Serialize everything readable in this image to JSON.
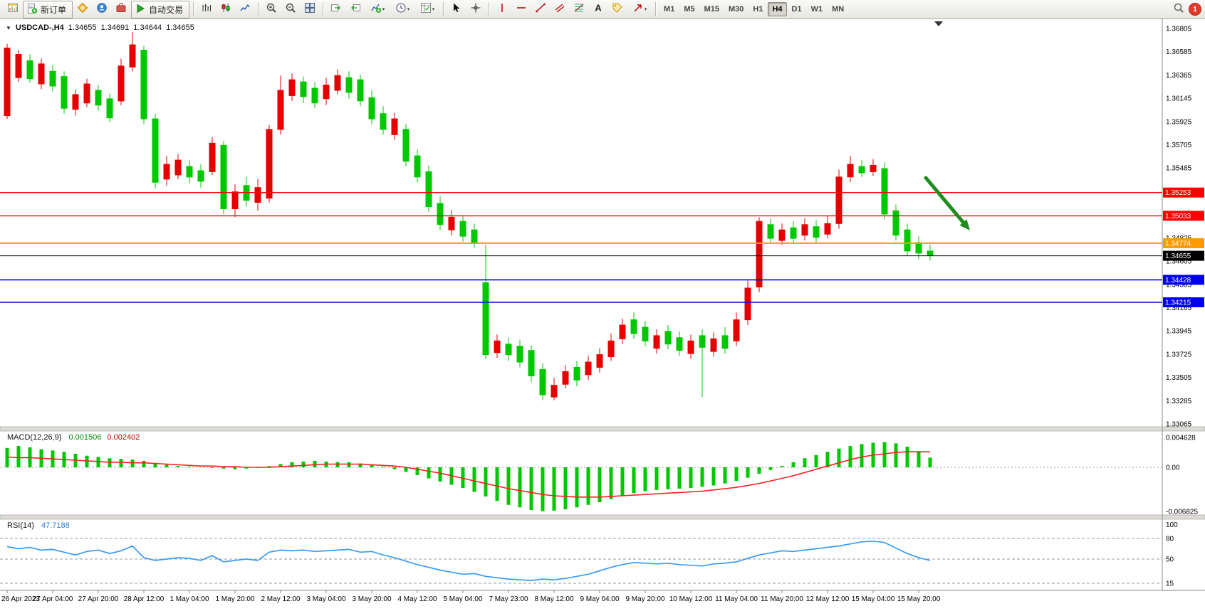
{
  "toolbar": {
    "items": [
      {
        "type": "icon",
        "name": "new-chart-icon"
      },
      {
        "type": "button",
        "name": "new-order-button",
        "icon": "order-ticket-icon",
        "label": "新订单"
      },
      {
        "type": "icon",
        "name": "metaquotes-icon"
      },
      {
        "type": "icon",
        "name": "community-icon"
      },
      {
        "type": "icon",
        "name": "market-icon"
      },
      {
        "type": "button",
        "name": "autotrading-button",
        "icon": "play-icon",
        "label": "自动交易"
      },
      {
        "type": "sep"
      },
      {
        "type": "icon",
        "name": "bar-chart-icon"
      },
      {
        "type": "icon",
        "name": "candlestick-chart-icon"
      },
      {
        "type": "icon",
        "name": "line-chart-icon"
      },
      {
        "type": "sep"
      },
      {
        "type": "icon",
        "name": "zoom-in-icon"
      },
      {
        "type": "icon",
        "name": "zoom-out-icon"
      },
      {
        "type": "icon",
        "name": "tile-windows-icon"
      },
      {
        "type": "sep"
      },
      {
        "type": "icon",
        "name": "auto-scroll-icon"
      },
      {
        "type": "icon",
        "name": "chart-shift-icon"
      },
      {
        "type": "dropdown",
        "name": "indicators-dropdown",
        "icon": "indicators-icon"
      },
      {
        "type": "dropdown",
        "name": "periods-dropdown",
        "icon": "clock-icon"
      },
      {
        "type": "dropdown",
        "name": "templates-dropdown",
        "icon": "template-icon"
      },
      {
        "type": "sep"
      },
      {
        "type": "icon",
        "name": "cursor-icon"
      },
      {
        "type": "icon",
        "name": "crosshair-icon"
      },
      {
        "type": "sep"
      },
      {
        "type": "icon",
        "name": "vertical-line-icon"
      },
      {
        "type": "icon",
        "name": "horizontal-line-icon"
      },
      {
        "type": "icon",
        "name": "trendline-icon"
      },
      {
        "type": "icon",
        "name": "channel-icon"
      },
      {
        "type": "icon",
        "name": "fibonacci-icon"
      },
      {
        "type": "icon",
        "name": "text-icon"
      },
      {
        "type": "icon",
        "name": "label-icon"
      },
      {
        "type": "dropdown",
        "name": "arrows-dropdown",
        "icon": "arrow-tool-icon"
      },
      {
        "type": "sep"
      },
      {
        "type": "timeframes"
      },
      {
        "type": "spacer"
      },
      {
        "type": "icon",
        "name": "search-icon"
      },
      {
        "type": "badge",
        "name": "notification-badge"
      }
    ],
    "timeframes": [
      "M1",
      "M5",
      "M15",
      "M30",
      "H1",
      "H4",
      "D1",
      "W1",
      "MN"
    ],
    "active_timeframe": "H4",
    "notification_count": "1"
  },
  "chart": {
    "title": {
      "symbol": "USDCAD-,H4",
      "open": "1.34655",
      "high": "1.34691",
      "low": "1.34644",
      "close": "1.34655"
    },
    "colors": {
      "up": "#E60000",
      "down": "#00C800"
    },
    "price_axis": {
      "max": 1.36805,
      "min": 1.33065,
      "ticks": [
        "1.36805",
        "1.36585",
        "1.36365",
        "1.36145",
        "1.35925",
        "1.35705",
        "1.35485",
        "1.35265",
        "1.35045",
        "1.34825",
        "1.34605",
        "1.34385",
        "1.34165",
        "1.33945",
        "1.33725",
        "1.33505",
        "1.33285",
        "1.33065"
      ]
    },
    "hlines": [
      {
        "price": 1.35253,
        "label": "1.35253",
        "color": "#FF0000",
        "width": 1.4
      },
      {
        "price": 1.35033,
        "label": "1.35033",
        "color": "#FF0000",
        "width": 1.4
      },
      {
        "price": 1.34774,
        "label": "1.34774",
        "color": "#FF9900",
        "width": 2
      },
      {
        "price": 1.34655,
        "label": "1.34655",
        "color": "#000000",
        "width": 1
      },
      {
        "price": 1.34428,
        "label": "1.34428",
        "color": "#0000EE",
        "width": 1.6
      },
      {
        "price": 1.34215,
        "label": "1.34215",
        "color": "#0000EE",
        "width": 1.6
      }
    ],
    "time_axis": [
      "26 Apr 2023",
      "27 Apr 04:00",
      "27 Apr 20:00",
      "28 Apr 12:00",
      "1 May 04:00",
      "1 May 20:00",
      "2 May 12:00",
      "3 May 04:00",
      "3 May 20:00",
      "4 May 12:00",
      "5 May 04:00",
      "7 May 23:00",
      "8 May 12:00",
      "9 May 04:00",
      "9 May 20:00",
      "10 May 12:00",
      "11 May 04:00",
      "11 May 20:00",
      "12 May 12:00",
      "15 May 04:00",
      "15 May 20:00"
    ],
    "annotation_arrow": {
      "color": "#1E8C1E"
    },
    "candles": [
      [
        1.3662,
        1.3598,
        1.3666,
        1.3595,
        "r"
      ],
      [
        1.3656,
        1.3634,
        1.366,
        1.363,
        "r"
      ],
      [
        1.365,
        1.3633,
        1.3656,
        1.3629,
        "g"
      ],
      [
        1.3647,
        1.3628,
        1.3652,
        1.3623,
        "r"
      ],
      [
        1.364,
        1.3626,
        1.3646,
        1.3621,
        "g"
      ],
      [
        1.3635,
        1.3605,
        1.364,
        1.36,
        "g"
      ],
      [
        1.3618,
        1.3604,
        1.3623,
        1.3598,
        "r"
      ],
      [
        1.3628,
        1.361,
        1.3633,
        1.3606,
        "r"
      ],
      [
        1.3622,
        1.3608,
        1.3627,
        1.3603,
        "g"
      ],
      [
        1.3614,
        1.3596,
        1.3619,
        1.3592,
        "g"
      ],
      [
        1.3645,
        1.3612,
        1.3652,
        1.3608,
        "r"
      ],
      [
        1.3665,
        1.3644,
        1.3677,
        1.364,
        "r"
      ],
      [
        1.366,
        1.3595,
        1.3664,
        1.359,
        "g"
      ],
      [
        1.3595,
        1.3535,
        1.36,
        1.3529,
        "g"
      ],
      [
        1.3552,
        1.3538,
        1.356,
        1.3532,
        "r"
      ],
      [
        1.3556,
        1.3542,
        1.3562,
        1.3538,
        "r"
      ],
      [
        1.355,
        1.354,
        1.3556,
        1.3534,
        "g"
      ],
      [
        1.3546,
        1.3536,
        1.3552,
        1.353,
        "g"
      ],
      [
        1.3572,
        1.3545,
        1.3578,
        1.3542,
        "r"
      ],
      [
        1.357,
        1.351,
        1.3574,
        1.3505,
        "g"
      ],
      [
        1.3526,
        1.351,
        1.3533,
        1.3502,
        "r"
      ],
      [
        1.3532,
        1.3518,
        1.354,
        1.3512,
        "g"
      ],
      [
        1.353,
        1.3516,
        1.3538,
        1.3508,
        "r"
      ],
      [
        1.3585,
        1.352,
        1.3589,
        1.3516,
        "r"
      ],
      [
        1.3622,
        1.3585,
        1.3636,
        1.358,
        "r"
      ],
      [
        1.3632,
        1.3617,
        1.3638,
        1.3612,
        "r"
      ],
      [
        1.363,
        1.3616,
        1.3635,
        1.361,
        "g"
      ],
      [
        1.3624,
        1.361,
        1.363,
        1.3605,
        "g"
      ],
      [
        1.3627,
        1.3614,
        1.3634,
        1.3608,
        "r"
      ],
      [
        1.3636,
        1.3622,
        1.3642,
        1.3618,
        "r"
      ],
      [
        1.3634,
        1.362,
        1.364,
        1.3614,
        "g"
      ],
      [
        1.3632,
        1.3612,
        1.3637,
        1.3607,
        "g"
      ],
      [
        1.3615,
        1.3595,
        1.3622,
        1.359,
        "g"
      ],
      [
        1.36,
        1.3585,
        1.3607,
        1.358,
        "g"
      ],
      [
        1.3595,
        1.358,
        1.3601,
        1.3575,
        "r"
      ],
      [
        1.3585,
        1.3555,
        1.359,
        1.355,
        "g"
      ],
      [
        1.356,
        1.354,
        1.3566,
        1.3535,
        "g"
      ],
      [
        1.3545,
        1.3512,
        1.3551,
        1.3507,
        "g"
      ],
      [
        1.3515,
        1.3495,
        1.3522,
        1.349,
        "g"
      ],
      [
        1.3502,
        1.349,
        1.3509,
        1.3485,
        "r"
      ],
      [
        1.3498,
        1.3484,
        1.3504,
        1.3479,
        "g"
      ],
      [
        1.349,
        1.3478,
        1.3496,
        1.3473,
        "g"
      ],
      [
        1.344,
        1.3372,
        1.3476,
        1.3368,
        "g"
      ],
      [
        1.3385,
        1.3374,
        1.3391,
        1.3369,
        "r"
      ],
      [
        1.3382,
        1.3372,
        1.3388,
        1.3366,
        "g"
      ],
      [
        1.338,
        1.3365,
        1.3386,
        1.336,
        "g"
      ],
      [
        1.3376,
        1.3352,
        1.3381,
        1.3346,
        "g"
      ],
      [
        1.3358,
        1.3334,
        1.3364,
        1.3329,
        "g"
      ],
      [
        1.3343,
        1.3332,
        1.335,
        1.3329,
        "r"
      ],
      [
        1.3356,
        1.3344,
        1.3362,
        1.334,
        "r"
      ],
      [
        1.336,
        1.3348,
        1.3366,
        1.3342,
        "g"
      ],
      [
        1.3365,
        1.3353,
        1.3371,
        1.3348,
        "r"
      ],
      [
        1.3372,
        1.336,
        1.3378,
        1.3355,
        "r"
      ],
      [
        1.3385,
        1.337,
        1.3392,
        1.3366,
        "r"
      ],
      [
        1.34,
        1.3387,
        1.3406,
        1.3382,
        "r"
      ],
      [
        1.3405,
        1.3392,
        1.3412,
        1.3387,
        "g"
      ],
      [
        1.3398,
        1.3385,
        1.3404,
        1.338,
        "g"
      ],
      [
        1.339,
        1.3378,
        1.3396,
        1.3373,
        "r"
      ],
      [
        1.3394,
        1.3382,
        1.34,
        1.3377,
        "g"
      ],
      [
        1.3388,
        1.3376,
        1.3394,
        1.3371,
        "g"
      ],
      [
        1.3385,
        1.3373,
        1.3391,
        1.3368,
        "r"
      ],
      [
        1.339,
        1.3379,
        1.3396,
        1.3332,
        "g"
      ],
      [
        1.3387,
        1.3375,
        1.3393,
        1.337,
        "r"
      ],
      [
        1.339,
        1.3378,
        1.3398,
        1.3373,
        "g"
      ],
      [
        1.3405,
        1.3385,
        1.3412,
        1.338,
        "r"
      ],
      [
        1.3435,
        1.3405,
        1.3442,
        1.34,
        "r"
      ],
      [
        1.3498,
        1.3436,
        1.3502,
        1.3431,
        "r"
      ],
      [
        1.3495,
        1.3482,
        1.3501,
        1.3478,
        "g"
      ],
      [
        1.349,
        1.348,
        1.3496,
        1.3476,
        "r"
      ],
      [
        1.3492,
        1.3482,
        1.3498,
        1.3477,
        "g"
      ],
      [
        1.3495,
        1.3485,
        1.3501,
        1.348,
        "r"
      ],
      [
        1.3493,
        1.3483,
        1.3499,
        1.3478,
        "g"
      ],
      [
        1.3496,
        1.3486,
        1.3503,
        1.3482,
        "r"
      ],
      [
        1.354,
        1.3496,
        1.3547,
        1.3491,
        "r"
      ],
      [
        1.3552,
        1.354,
        1.356,
        1.3535,
        "r"
      ],
      [
        1.355,
        1.3544,
        1.3556,
        1.354,
        "g"
      ],
      [
        1.3551,
        1.3545,
        1.3557,
        1.3541,
        "r"
      ],
      [
        1.3548,
        1.3505,
        1.3554,
        1.35,
        "g"
      ],
      [
        1.3508,
        1.3485,
        1.3514,
        1.348,
        "g"
      ],
      [
        1.349,
        1.347,
        1.3496,
        1.3465,
        "g"
      ],
      [
        1.3478,
        1.3468,
        1.3484,
        1.3462,
        "g"
      ],
      [
        1.347,
        1.34655,
        1.3476,
        1.3461,
        "g"
      ]
    ]
  },
  "macd": {
    "name": "MACD(12,26,9)",
    "value_main": "0.001506",
    "value_signal": "0.002402",
    "axis_labels": [
      "0.004628",
      "0.00",
      "-0.006825"
    ],
    "max": 0.004628,
    "min": -0.006825,
    "histogram_color": "#00C800",
    "signal_color": "#FF2020",
    "histogram": [
      0.003,
      0.0033,
      0.0031,
      0.0028,
      0.0026,
      0.0024,
      0.0021,
      0.0018,
      0.0016,
      0.0014,
      0.0013,
      0.0012,
      0.001,
      0.0007,
      0.0004,
      0.0002,
      0.0001,
      0.0,
      -0.0001,
      -0.0002,
      -0.0003,
      -0.0002,
      -0.0001,
      0.0002,
      0.0005,
      0.0008,
      0.0009,
      0.001,
      0.0009,
      0.0008,
      0.0008,
      0.0006,
      0.0004,
      0.0001,
      -0.0003,
      -0.0007,
      -0.0012,
      -0.0017,
      -0.0022,
      -0.0027,
      -0.0032,
      -0.0038,
      -0.0045,
      -0.0052,
      -0.0058,
      -0.0062,
      -0.0066,
      -0.0068,
      -0.0067,
      -0.0065,
      -0.0062,
      -0.0058,
      -0.0054,
      -0.0049,
      -0.0044,
      -0.004,
      -0.0037,
      -0.0035,
      -0.0034,
      -0.0033,
      -0.0032,
      -0.003,
      -0.0028,
      -0.0025,
      -0.0021,
      -0.0016,
      -0.001,
      -0.0004,
      0.0002,
      0.0008,
      0.0014,
      0.0019,
      0.0024,
      0.0029,
      0.0033,
      0.0036,
      0.0038,
      0.0039,
      0.0037,
      0.0032,
      0.0025,
      0.0015
    ],
    "signal": [
      0.0016,
      0.0015,
      0.0015,
      0.0014,
      0.0013,
      0.0012,
      0.0011,
      0.001,
      0.0009,
      0.0008,
      0.0008,
      0.0007,
      0.0007,
      0.0006,
      0.0005,
      0.0004,
      0.0003,
      0.0002,
      0.0002,
      0.0001,
      0.0001,
      0.0,
      0.0,
      0.0,
      0.0001,
      0.0002,
      0.0003,
      0.0004,
      0.0005,
      0.0005,
      0.0005,
      0.0005,
      0.0004,
      0.0003,
      0.0002,
      0.0,
      -0.0003,
      -0.0006,
      -0.0009,
      -0.0013,
      -0.0017,
      -0.0021,
      -0.0025,
      -0.0029,
      -0.0033,
      -0.0036,
      -0.0039,
      -0.0042,
      -0.0044,
      -0.0045,
      -0.0046,
      -0.0046,
      -0.0046,
      -0.0045,
      -0.0044,
      -0.0043,
      -0.0042,
      -0.0041,
      -0.004,
      -0.0039,
      -0.0038,
      -0.0037,
      -0.0035,
      -0.0033,
      -0.0031,
      -0.0028,
      -0.0025,
      -0.0021,
      -0.0017,
      -0.0013,
      -0.0008,
      -0.0003,
      0.0002,
      0.0007,
      0.0012,
      0.0016,
      0.0019,
      0.0021,
      0.0023,
      0.0024,
      0.0024,
      0.0024
    ]
  },
  "rsi": {
    "name": "RSI(14)",
    "value": "47.7188",
    "axis_labels": [
      "100",
      "80",
      "50",
      "15"
    ],
    "levels": [
      80,
      50,
      15
    ],
    "color": "#3A9BF4",
    "series": [
      68,
      65,
      67,
      63,
      64,
      60,
      56,
      61,
      63,
      58,
      62,
      69,
      52,
      48,
      50,
      52,
      51,
      48,
      55,
      46,
      48,
      50,
      48,
      60,
      63,
      62,
      63,
      61,
      62,
      63,
      64,
      60,
      61,
      56,
      52,
      47,
      42,
      38,
      34,
      31,
      28,
      29,
      25,
      23,
      21,
      20,
      19,
      21,
      20,
      22,
      25,
      28,
      33,
      38,
      42,
      45,
      44,
      43,
      44,
      42,
      41,
      40,
      43,
      44,
      46,
      51,
      56,
      59,
      62,
      61,
      63,
      65,
      67,
      69,
      72,
      75,
      76,
      74,
      66,
      58,
      52,
      48
    ]
  }
}
